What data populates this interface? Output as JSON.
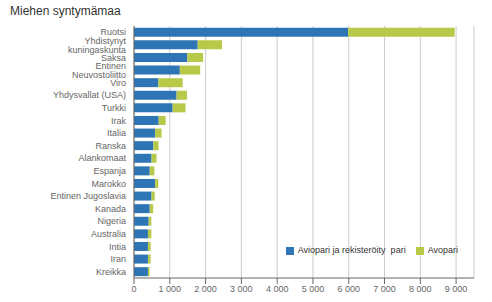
{
  "chart_data": {
    "type": "bar",
    "orientation": "horizontal",
    "stacked": true,
    "title": "Miehen syntymämaa",
    "categories": [
      "Kreikka",
      "Iran",
      "Intia",
      "Australia",
      "Nigeria",
      "Kanada",
      "Entinen Jugoslavia",
      "Marokko",
      "Espanja",
      "Alankomaat",
      "Ranska",
      "Italia",
      "Irak",
      "Turkki",
      "Yhdysvallat (USA)",
      "Viro",
      "Entinen Neuvostoliitto",
      "Saksa",
      "Yhdistynyt kuningaskunta",
      "Ruotsi"
    ],
    "series": [
      {
        "name": "Aviopari ja rekisteröity  pari",
        "color": "#2E75B6",
        "values": [
          390,
          390,
          390,
          390,
          410,
          440,
          490,
          590,
          440,
          490,
          540,
          590,
          690,
          1080,
          1190,
          680,
          1280,
          1490,
          1780,
          5980
        ]
      },
      {
        "name": "Avopari",
        "color": "#B8C94A",
        "values": [
          45,
          75,
          75,
          95,
          75,
          95,
          90,
          90,
          130,
          140,
          145,
          180,
          195,
          360,
          290,
          680,
          570,
          440,
          680,
          2980
        ]
      }
    ],
    "xlim": [
      0,
      9500
    ],
    "xticks": [
      0,
      {
        "value": 1000,
        "label": "1 000"
      },
      {
        "value": 2000,
        "label": "2 000"
      },
      {
        "value": 3000,
        "label": "3 000"
      },
      {
        "value": 4000,
        "label": "4 000"
      },
      {
        "value": 5000,
        "label": "5 000"
      },
      {
        "value": 6000,
        "label": "6 000"
      },
      {
        "value": 7000,
        "label": "7 000"
      },
      {
        "value": 8000,
        "label": "8 000"
      },
      {
        "value": 9000,
        "label": "9 000"
      }
    ],
    "grid": true,
    "legend": "lower right"
  }
}
